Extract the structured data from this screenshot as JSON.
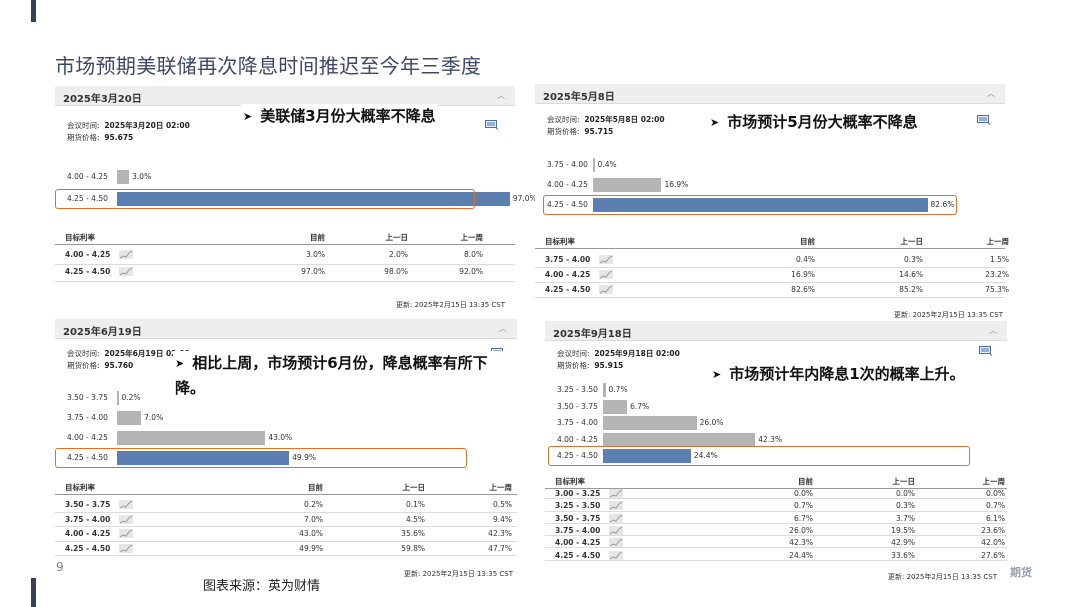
{
  "slide": {
    "title": "市场预期美联储再次降息时间推迟至今年三季度",
    "source": "图表来源：英为财情",
    "page_number": "9",
    "footer_brand": "期货"
  },
  "colors": {
    "bar_gray": "#b4b4b4",
    "bar_blue": "#5b7fb0",
    "highlight": "#d8732f",
    "accent": "#3a3f52"
  },
  "panels": [
    {
      "date": "2025年3月20日",
      "meeting_label": "会议时间:",
      "meeting_time": "2025年3月20日 02:00",
      "futures_label": "期货价格:",
      "futures_price": "95.675",
      "annotation": "美联储3月份大概率不降息",
      "table_headers": [
        "目标利率",
        "目前",
        "上一日",
        "上一周"
      ],
      "table_rows": [
        [
          "4.00 - 4.25",
          "3.0%",
          "2.0%",
          "8.0%"
        ],
        [
          "4.25 - 4.50",
          "97.0%",
          "98.0%",
          "92.0%"
        ]
      ],
      "updated": "更新: 2025年2月15日 13:35 CST"
    },
    {
      "date": "2025年5月8日",
      "meeting_label": "会议时间:",
      "meeting_time": "2025年5月8日 02:00",
      "futures_label": "期货价格:",
      "futures_price": "95.715",
      "annotation": "市场预计5月份大概率不降息",
      "table_headers": [
        "目标利率",
        "目前",
        "上一日",
        "上一周"
      ],
      "table_rows": [
        [
          "3.75 - 4.00",
          "0.4%",
          "0.3%",
          "1.5%"
        ],
        [
          "4.00 - 4.25",
          "16.9%",
          "14.6%",
          "23.2%"
        ],
        [
          "4.25 - 4.50",
          "82.6%",
          "85.2%",
          "75.3%"
        ]
      ],
      "updated": "更新: 2025年2月15日 13:35 CST"
    },
    {
      "date": "2025年6月19日",
      "meeting_label": "会议时间:",
      "meeting_time": "2025年6月19日 02:00",
      "futures_label": "期货价格:",
      "futures_price": "95.760",
      "annotation": "相比上周，市场预计6月份，降息概率有所下降。",
      "table_headers": [
        "目标利率",
        "目前",
        "上一日",
        "上一周"
      ],
      "table_rows": [
        [
          "3.50 - 3.75",
          "0.2%",
          "0.1%",
          "0.5%"
        ],
        [
          "3.75 - 4.00",
          "7.0%",
          "4.5%",
          "9.4%"
        ],
        [
          "4.00 - 4.25",
          "43.0%",
          "35.6%",
          "42.3%"
        ],
        [
          "4.25 - 4.50",
          "49.9%",
          "59.8%",
          "47.7%"
        ]
      ],
      "updated": "更新: 2025年2月15日 13:35 CST"
    },
    {
      "date": "2025年9月18日",
      "meeting_label": "会议时间:",
      "meeting_time": "2025年9月18日 02:00",
      "futures_label": "期货价格:",
      "futures_price": "95.915",
      "annotation": "市场预计年内降息1次的概率上升。",
      "table_headers": [
        "目标利率",
        "目前",
        "上一日",
        "上一周"
      ],
      "table_rows": [
        [
          "3.00 - 3.25",
          "0.0%",
          "0.0%",
          "0.0%"
        ],
        [
          "3.25 - 3.50",
          "0.7%",
          "0.3%",
          "0.7%"
        ],
        [
          "3.50 - 3.75",
          "6.7%",
          "3.7%",
          "6.1%"
        ],
        [
          "3.75 - 4.00",
          "26.0%",
          "19.5%",
          "23.6%"
        ],
        [
          "4.00 - 4.25",
          "42.3%",
          "42.9%",
          "42.0%"
        ],
        [
          "4.25 - 4.50",
          "24.4%",
          "33.6%",
          "27.6%"
        ]
      ],
      "updated": "更新: 2025年2月15日 13:35 CST"
    }
  ],
  "chart_data": [
    {
      "type": "bar",
      "title": "2025年3月20日",
      "categories": [
        "4.00 - 4.25",
        "4.25 - 4.50"
      ],
      "values": [
        3.0,
        97.0
      ],
      "value_labels": [
        "3.0%",
        "97.0%"
      ],
      "highlight_index": 1,
      "xlim": [
        0,
        100
      ]
    },
    {
      "type": "bar",
      "title": "2025年5月8日",
      "categories": [
        "3.75 - 4.00",
        "4.00 - 4.25",
        "4.25 - 4.50"
      ],
      "values": [
        0.4,
        16.9,
        82.6
      ],
      "value_labels": [
        "0.4%",
        "16.9%",
        "82.6%"
      ],
      "highlight_index": 2,
      "xlim": [
        0,
        100
      ]
    },
    {
      "type": "bar",
      "title": "2025年6月19日",
      "categories": [
        "3.50 - 3.75",
        "3.75 - 4.00",
        "4.00 - 4.25",
        "4.25 - 4.50"
      ],
      "values": [
        0.2,
        7.0,
        43.0,
        49.9
      ],
      "value_labels": [
        "0.2%",
        "7.0%",
        "43.0%",
        "49.9%"
      ],
      "highlight_index": 3,
      "xlim": [
        0,
        100
      ]
    },
    {
      "type": "bar",
      "title": "2025年9月18日",
      "categories": [
        "3.25 - 3.50",
        "3.50 - 3.75",
        "3.75 - 4.00",
        "4.00 - 4.25",
        "4.25 - 4.50"
      ],
      "values": [
        0.7,
        6.7,
        26.0,
        42.3,
        24.4
      ],
      "value_labels": [
        "0.7%",
        "6.7%",
        "26.0%",
        "42.3%",
        "24.4%"
      ],
      "highlight_index": 4,
      "xlim": [
        0,
        100
      ]
    }
  ]
}
